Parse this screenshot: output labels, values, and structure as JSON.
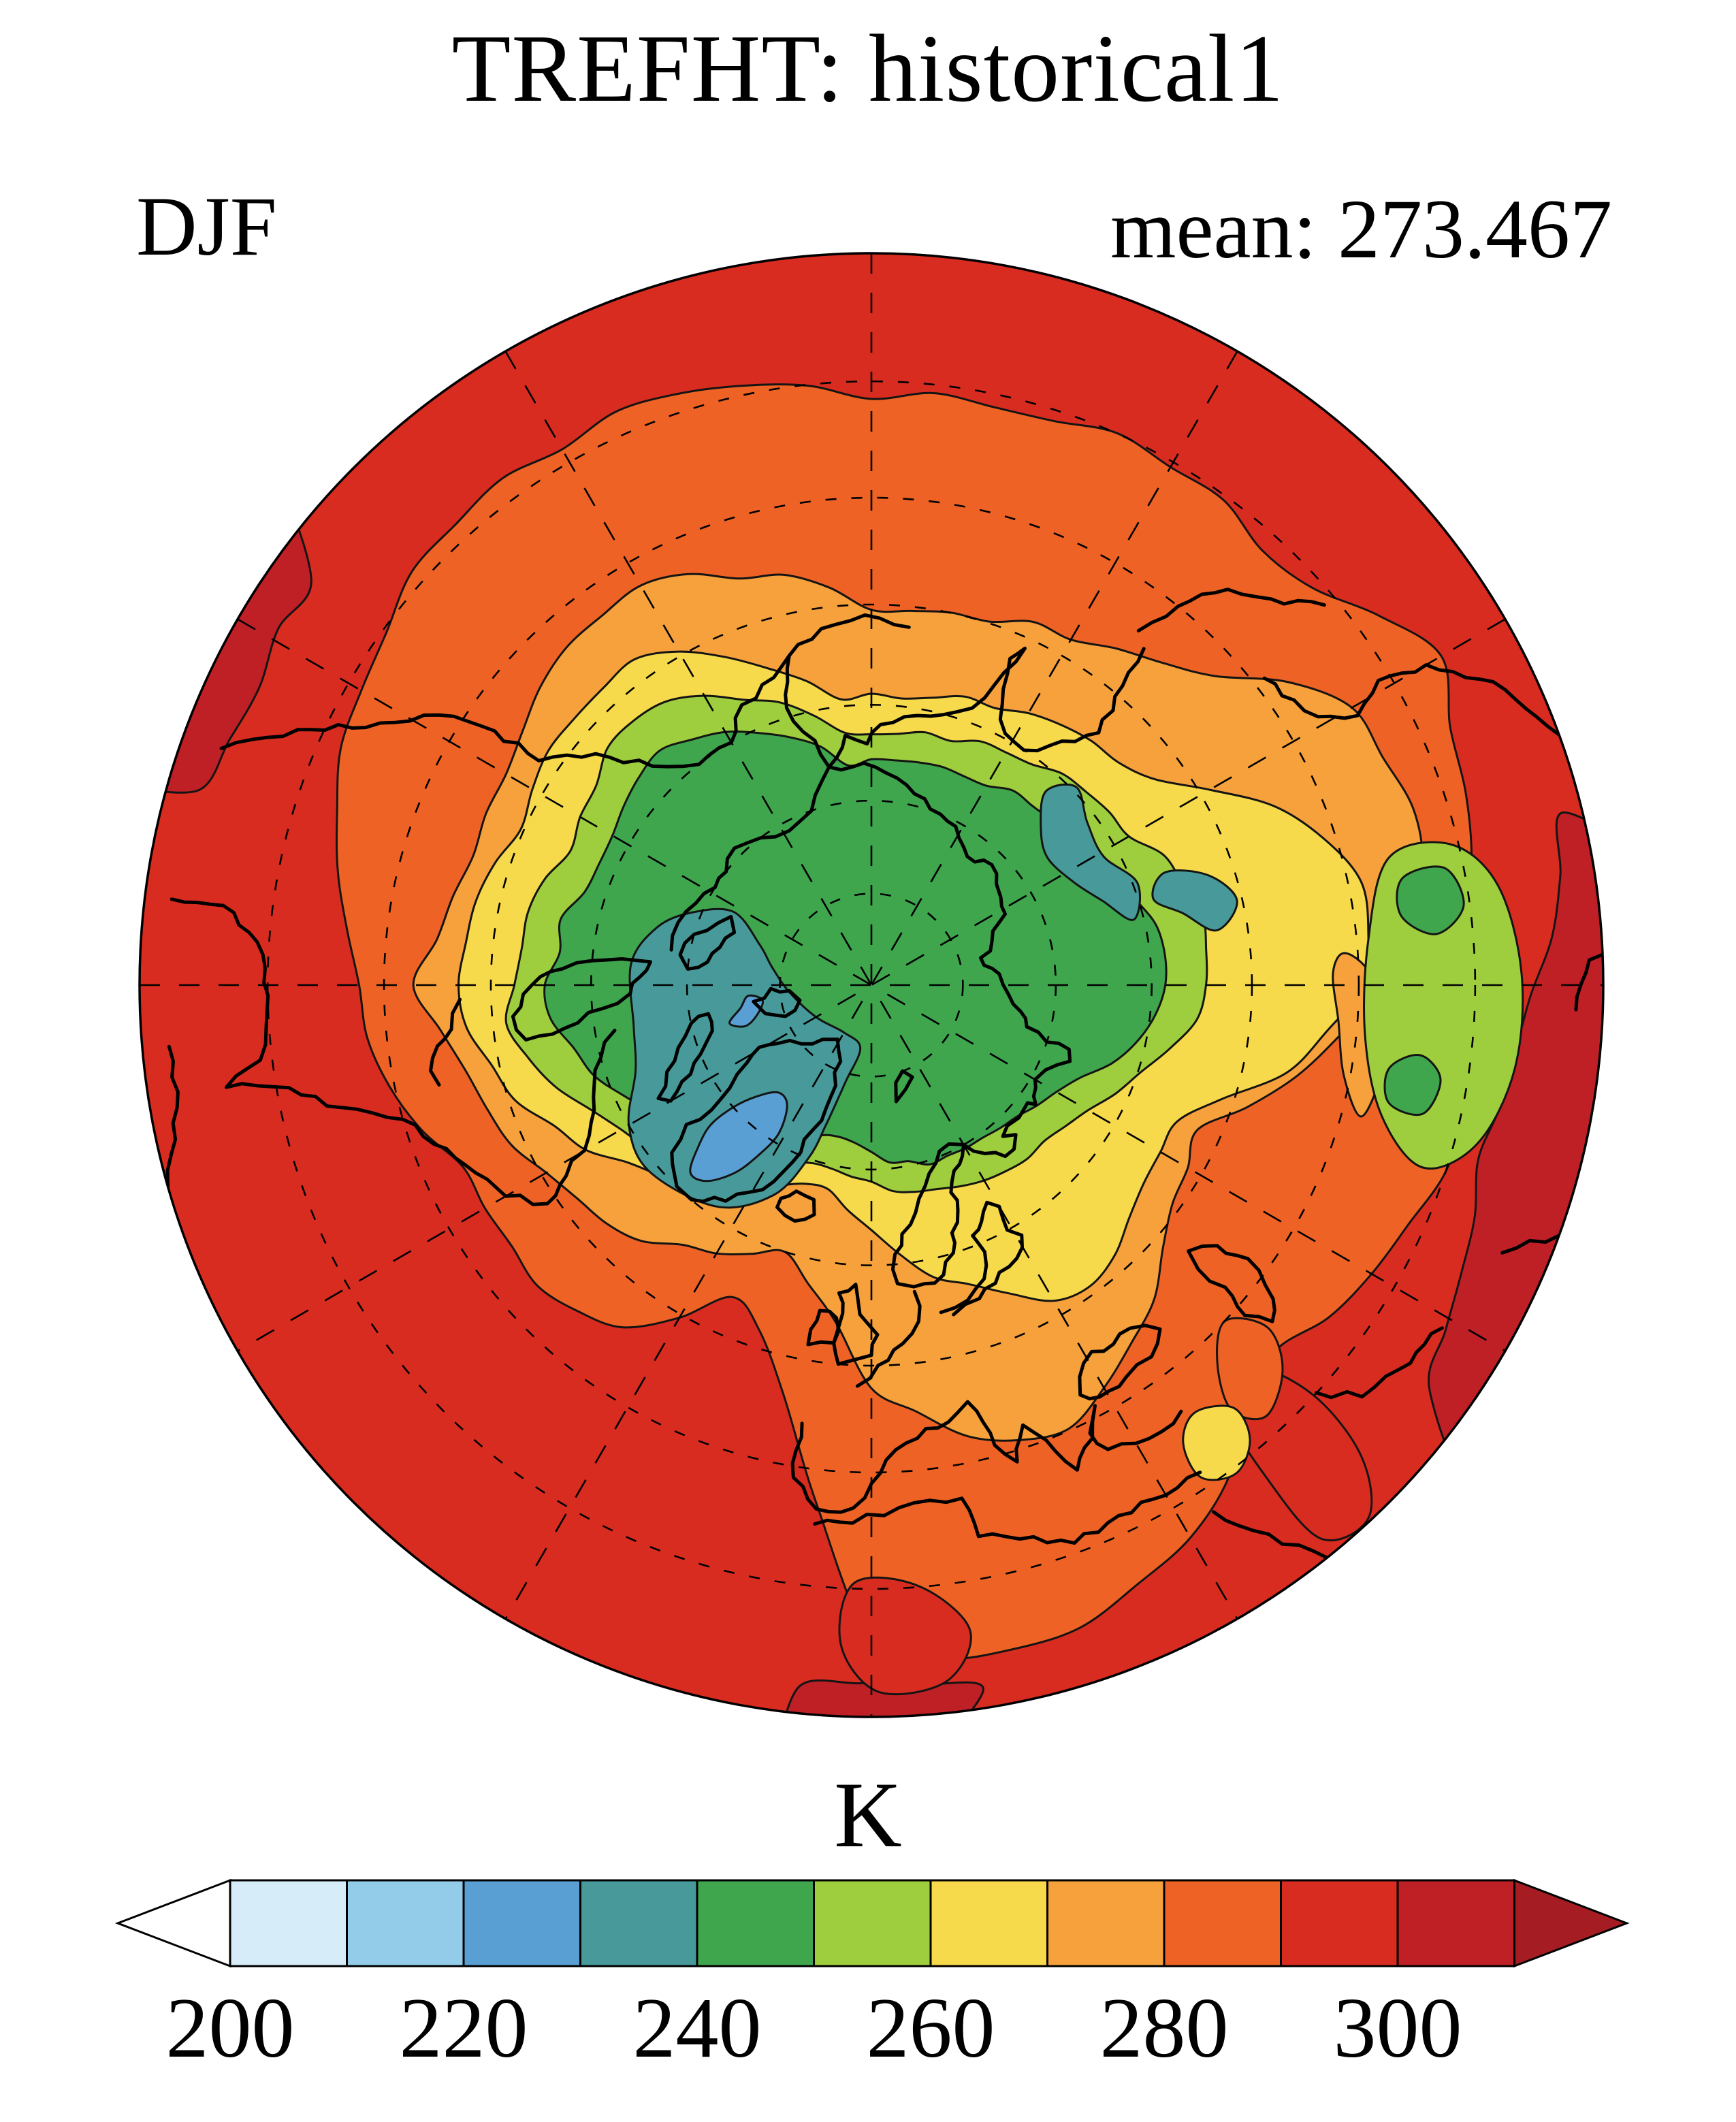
{
  "title": "TREFHT: historical1",
  "season_label": "DJF",
  "mean_label": "mean: 273.467",
  "units_label": "K",
  "colorbar": {
    "tick_labels": [
      "200",
      "220",
      "240",
      "260",
      "280",
      "300"
    ],
    "levels": [
      200,
      210,
      220,
      230,
      240,
      250,
      260,
      270,
      280,
      290,
      300,
      310
    ]
  },
  "palette": {
    "under_arrow": "#ffffff",
    "boxes": [
      "#d6ecf8",
      "#92cce9",
      "#5a9fd4",
      "#489a9a",
      "#3fa64e",
      "#9ecd3e",
      "#f7da4b",
      "#f6a13c",
      "#ee6325",
      "#d92c20",
      "#bf2026"
    ],
    "over_arrow": "#a51d23",
    "contour_line": "#141414",
    "coastline": "#000000",
    "background": "#ffffff"
  },
  "chart_data": {
    "type": "filled_contour_map",
    "variable": "TREFHT",
    "run": "historical1",
    "season": "DJF",
    "mean": 273.467,
    "units": "K",
    "projection": "north_polar_stereographic",
    "rim_latitude_deg_n": 20,
    "graticule": {
      "latitude_circles_deg_n": [
        30,
        40,
        50,
        60,
        70,
        80
      ],
      "meridian_spacing_deg": 30,
      "style": "dashed"
    },
    "contour_levels": [
      200,
      210,
      220,
      230,
      240,
      250,
      260,
      270,
      280,
      290,
      300,
      310
    ],
    "colorbar_tick_labels": [
      "200",
      "220",
      "240",
      "260",
      "280",
      "300"
    ],
    "band_colors_low_to_high": [
      "#ffffff",
      "#d6ecf8",
      "#92cce9",
      "#5a9fd4",
      "#489a9a",
      "#3fa64e",
      "#9ecd3e",
      "#f7da4b",
      "#f6a13c",
      "#ee6325",
      "#d92c20",
      "#bf2026",
      "#a51d23"
    ],
    "notable_features": [
      "coldest 220-240 K over Greenland ice sheet and central Arctic (blue/teal)",
      "cold teal patches over Canadian Arctic Archipelago and eastern Siberia",
      "green 240-250 K cap around the pole",
      "cold lime/green anomaly over Tibetan Plateau",
      "warm orange tongue of North Atlantic reaching Iceland/Norway",
      "hottest 300-310 K near rim over SE Asia, Arabia and North Africa"
    ]
  }
}
